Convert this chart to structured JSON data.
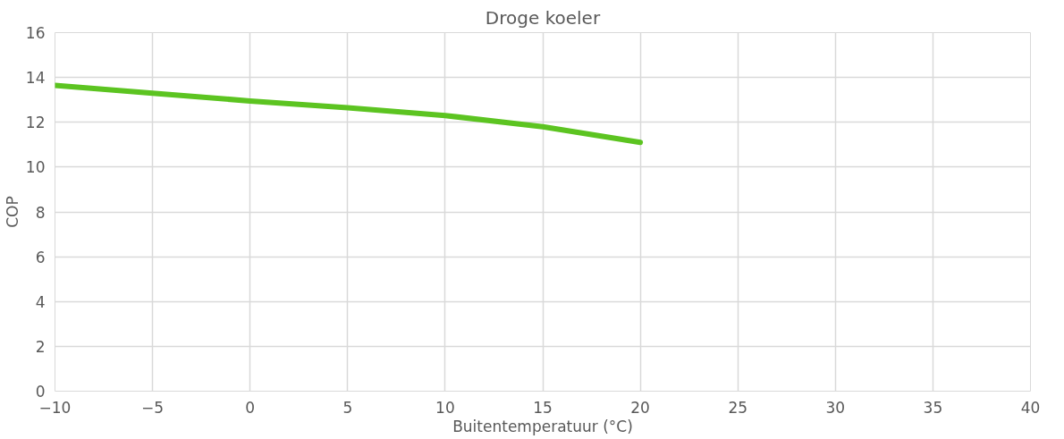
{
  "chart_data": {
    "type": "line",
    "title": "Droge koeler",
    "xlabel": "Buitentemperatuur (°C)",
    "ylabel": "COP",
    "x": [
      -10,
      -5,
      0,
      5,
      10,
      15,
      20
    ],
    "series": [
      {
        "color": "#5cc421",
        "values": [
          13.65,
          13.3,
          12.95,
          12.65,
          12.3,
          11.8,
          11.1
        ]
      }
    ],
    "xlim": [
      -10,
      40
    ],
    "xticks": [
      -10,
      -5,
      0,
      5,
      10,
      15,
      20,
      25,
      30,
      35,
      40
    ],
    "ylim": [
      0,
      16
    ],
    "yticks": [
      0,
      2,
      4,
      6,
      8,
      10,
      12,
      14,
      16
    ],
    "grid": true,
    "marker": "none",
    "line_style": "solid"
  }
}
